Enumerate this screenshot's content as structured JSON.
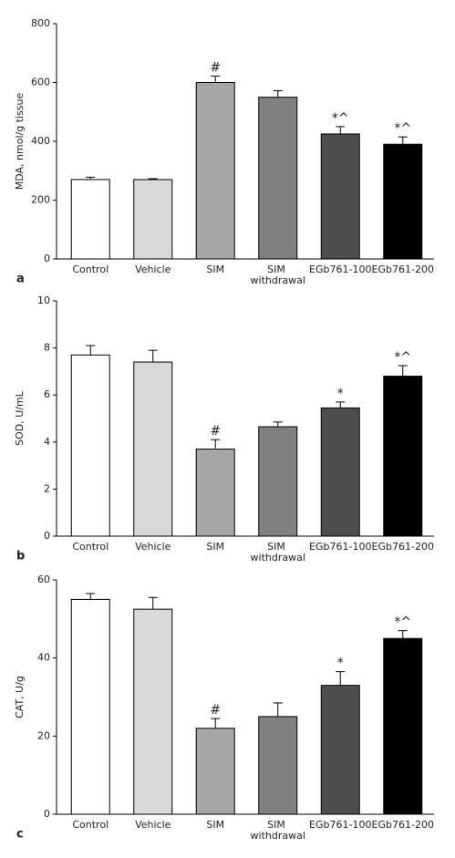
{
  "chart_data": [
    {
      "type": "bar",
      "panel": "a",
      "ylabel": "MDA, nmol/g tissue",
      "categories": [
        "Control",
        "Vehicle",
        "SIM",
        "SIM withdrawal",
        "EGb761-100",
        "EGb761-200"
      ],
      "values": [
        270,
        270,
        600,
        550,
        425,
        390
      ],
      "errors": [
        8,
        3,
        22,
        22,
        25,
        25
      ],
      "annotations": [
        null,
        null,
        "#",
        null,
        "*^",
        "*^"
      ],
      "colors": [
        "#ffffff",
        "#d9d9d9",
        "#a6a6a6",
        "#808080",
        "#4d4d4d",
        "#000000"
      ],
      "ylim": [
        0,
        800
      ],
      "yticks": [
        0,
        200,
        400,
        600,
        800
      ]
    },
    {
      "type": "bar",
      "panel": "b",
      "ylabel": "SOD, U/mL",
      "categories": [
        "Control",
        "Vehicle",
        "SIM",
        "SIM withdrawal",
        "EGb761-100",
        "EGb761-200"
      ],
      "values": [
        7.7,
        7.4,
        3.7,
        4.65,
        5.45,
        6.8
      ],
      "errors": [
        0.4,
        0.5,
        0.4,
        0.2,
        0.25,
        0.45
      ],
      "annotations": [
        null,
        null,
        "#",
        null,
        "*",
        "*^"
      ],
      "colors": [
        "#ffffff",
        "#d9d9d9",
        "#a6a6a6",
        "#808080",
        "#4d4d4d",
        "#000000"
      ],
      "ylim": [
        0,
        10
      ],
      "yticks": [
        0,
        2,
        4,
        6,
        8,
        10
      ]
    },
    {
      "type": "bar",
      "panel": "c",
      "ylabel": "CAT, U/g",
      "categories": [
        "Control",
        "Vehicle",
        "SIM",
        "SIM withdrawal",
        "EGb761-100",
        "EGb761-200"
      ],
      "values": [
        55,
        52.5,
        22,
        25,
        33,
        45
      ],
      "errors": [
        1.5,
        3,
        2.5,
        3.5,
        3.5,
        2
      ],
      "annotations": [
        null,
        null,
        "#",
        null,
        "*",
        "*^"
      ],
      "colors": [
        "#ffffff",
        "#d9d9d9",
        "#a6a6a6",
        "#808080",
        "#4d4d4d",
        "#000000"
      ],
      "ylim": [
        0,
        60
      ],
      "yticks": [
        0,
        20,
        40,
        60
      ]
    }
  ]
}
